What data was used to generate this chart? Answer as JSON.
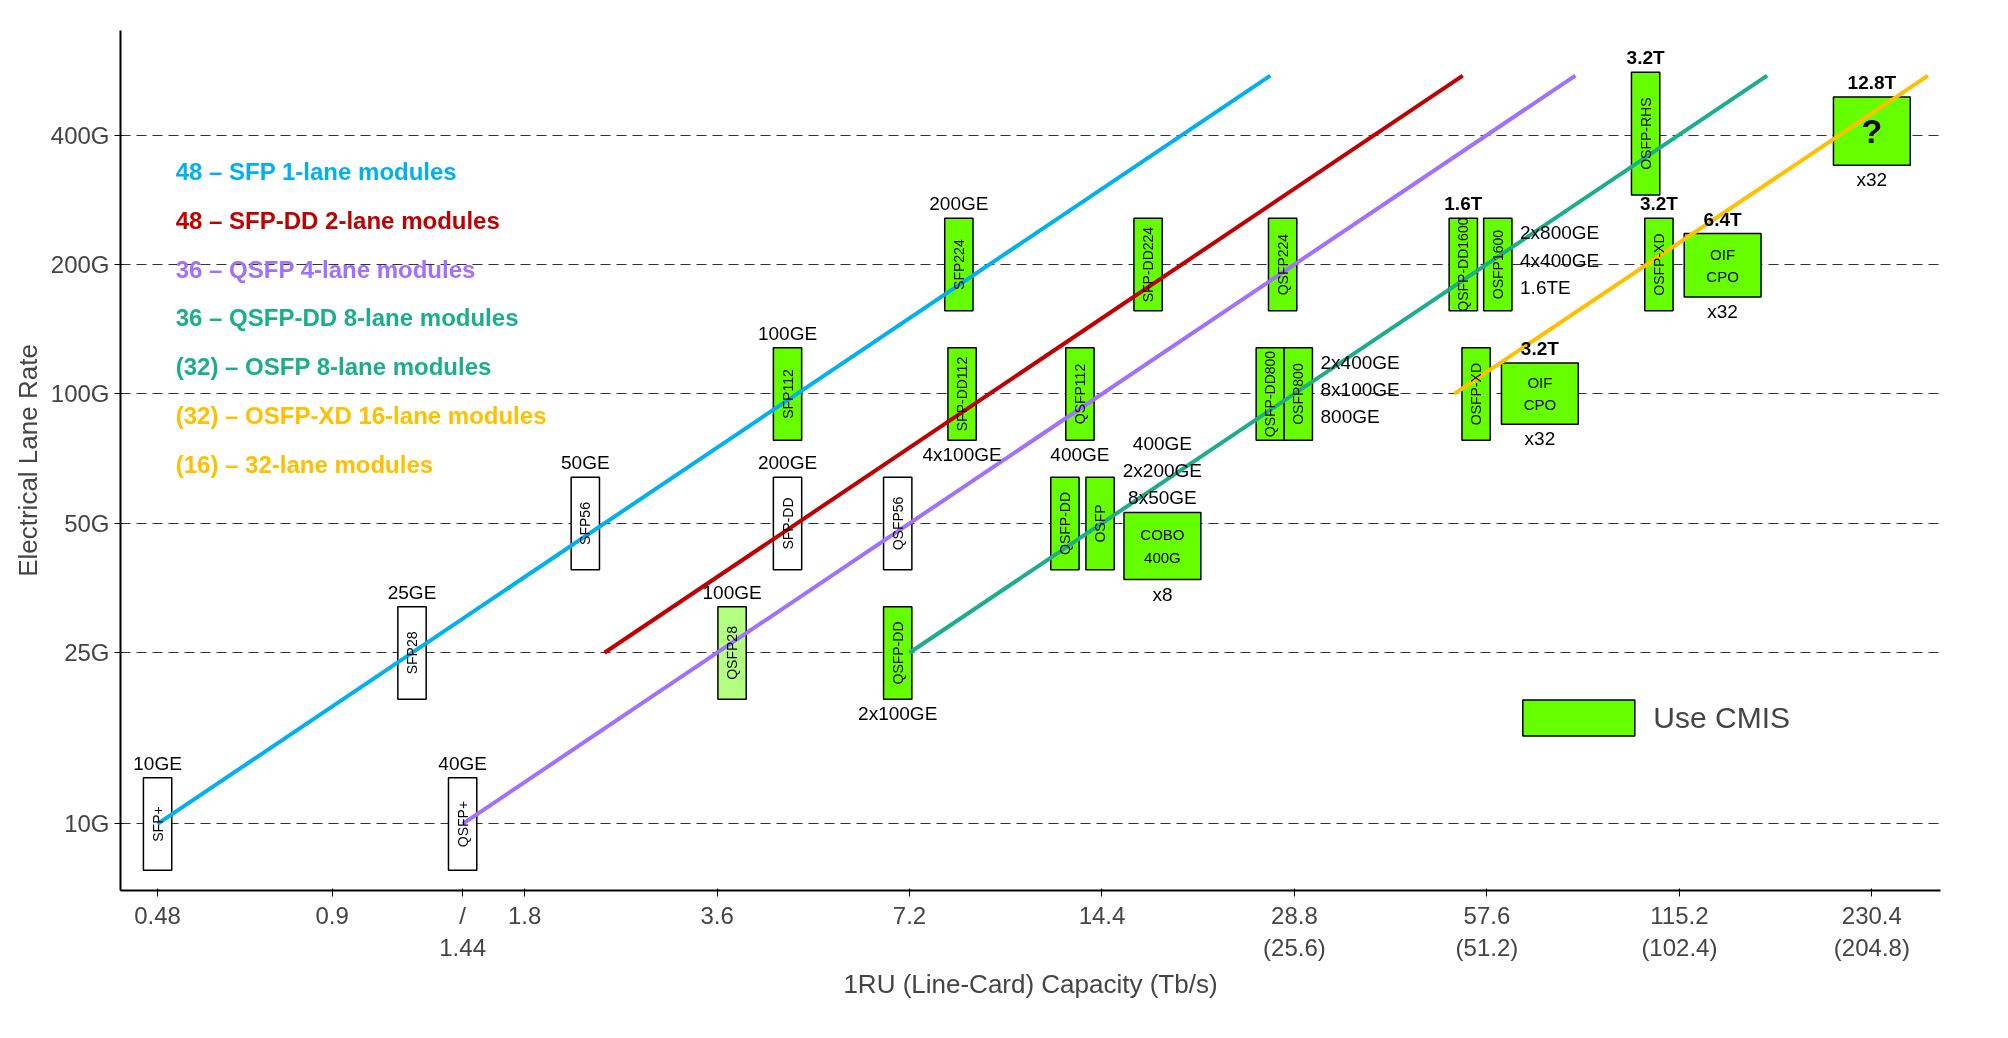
{
  "chart_data": {
    "type": "line",
    "xlabel": "1RU (Line-Card) Capacity (Tb/s)",
    "ylabel": "Electrical Lane Rate",
    "log": "xy",
    "xlim": [
      0.42,
      295
    ],
    "ylim": [
      7,
      700
    ],
    "xticks": [
      0.48,
      0.9,
      {
        "value": 1.44,
        "label": "/\n1.44"
      },
      1.8,
      3.6,
      7.2,
      14.4,
      {
        "value": 28.8,
        "label": "28.8\n(25.6)"
      },
      {
        "value": 57.6,
        "label": "57.6\n(51.2)"
      },
      {
        "value": 115.2,
        "label": "115.2\n(102.4)"
      },
      {
        "value": 230.4,
        "label": "230.4\n(204.8)"
      }
    ],
    "yticks": [
      {
        "value": 10,
        "label": "10G"
      },
      {
        "value": 25,
        "label": "25G"
      },
      {
        "value": 50,
        "label": "50G"
      },
      {
        "value": 100,
        "label": "100G"
      },
      {
        "value": 200,
        "label": "200G"
      },
      {
        "value": 400,
        "label": "400G"
      }
    ],
    "grid": "y",
    "legend": "bottom right",
    "series": [
      {
        "name": "48 – SFP 1-lane modules",
        "color": "#00b0f0",
        "x": [
          0.48,
          26.4
        ],
        "values": [
          10,
          550
        ]
      },
      {
        "name": "48 – SFP-DD 2-lane modules",
        "color": "#c00000",
        "x": [
          2.4,
          52.8
        ],
        "values": [
          25,
          550
        ]
      },
      {
        "name": "36 – QSFP 4-lane modules",
        "color": "#a070ff",
        "x": [
          1.44,
          79.2
        ],
        "values": [
          10,
          550
        ]
      },
      {
        "name": "36 – QSFP-DD 8-lane modules",
        "color": "#1aaf8a",
        "x": [
          7.2,
          158
        ],
        "values": [
          25,
          550
        ]
      },
      {
        "name": "(32) – OSFP 8-lane modules",
        "color": "#1aaf8a"
      },
      {
        "name": "(32) – OSFP-XD 16-lane modules",
        "color": "#ffc000",
        "x": [
          51.2,
          282
        ],
        "values": [
          100,
          550
        ]
      },
      {
        "name": "(16) – 32-lane modules",
        "color": "#ffc000"
      },
      {
        "name": "Use CMIS",
        "type": "bar",
        "color": "#66ff00",
        "x": [
          4.64,
          6.9,
          8.6,
          8.7,
          12.6,
          13.3,
          14.3,
          17,
          17.9,
          26.4,
          27.6,
          29.2,
          52.9,
          55.4,
          59.9,
          69.7,
          102,
          107,
          134.6,
          230.4
        ],
        "base": [
          78,
          19.5,
          156,
          78,
          39,
          78,
          39,
          156,
          37,
          78,
          156,
          78,
          156,
          78,
          156,
          85,
          290,
          156,
          168,
          340
        ],
        "values": [
          50,
          12.5,
          100,
          50,
          25,
          50,
          25,
          100,
          16,
          50,
          100,
          50,
          100,
          50,
          100,
          33,
          270,
          100,
          68,
          150
        ],
        "value_labels": [
          "SFP112",
          "QSFP-DD",
          "SFP224",
          "SFP-DD112",
          "QSFP-DD",
          "QSFP112",
          "OSFP",
          "SFP-DD224",
          "COBO\n400G",
          "QSFP-DD800",
          "QSFP224",
          "OSFP800",
          "QSFP-DD1600",
          "OSFP-XD",
          "OSFP1600",
          "OIF\nCPO",
          "OSFP-RHS",
          "OSFP-XD",
          "OIF\nCPO",
          "?"
        ]
      },
      {
        "type": "bar",
        "color": "#ffffff",
        "x": [
          0.48,
          1.2,
          1.44,
          2.24,
          4.64,
          6.9
        ],
        "base": [
          7.8,
          19.5,
          7.8,
          39,
          39,
          39
        ],
        "values": [
          5,
          12.5,
          5,
          25,
          25,
          25
        ],
        "value_labels": [
          "SFP+",
          "SFP28",
          "QSFP+",
          "SFP56",
          "SFP-DD",
          "QSFP56"
        ]
      },
      {
        "type": "bar",
        "color": "#b3ff80",
        "x": [
          3.8
        ],
        "base": [
          19.5
        ],
        "values": [
          12.5
        ],
        "value_labels": [
          "QSFP28"
        ]
      }
    ],
    "annotations": [
      {
        "text": "10GE",
        "x": 0.48,
        "y": 12.8
      },
      {
        "text": "25GE",
        "x": 1.2,
        "y": 32
      },
      {
        "text": "40GE",
        "x": 1.44,
        "y": 12.8
      },
      {
        "text": "50GE",
        "x": 2.24,
        "y": 64
      },
      {
        "text": "100GE",
        "x": 3.8,
        "y": 32
      },
      {
        "text": "100GE",
        "x": 4.64,
        "y": 128
      },
      {
        "text": "200GE",
        "x": 4.64,
        "y": 64
      },
      {
        "text": "200GE",
        "x": 8.6,
        "y": 256
      },
      {
        "text": "4x100GE",
        "x": 8.7,
        "y": 78
      },
      {
        "text": "400GE",
        "x": 13.3,
        "y": 78
      },
      {
        "text": "400GE\n2x200GE\n8x50GE",
        "x": 17.9,
        "y": 53
      },
      {
        "text": "x8",
        "x": 17.9,
        "y": 37
      },
      {
        "text": "2x100GE",
        "x": 6.9,
        "y": 19.5
      },
      {
        "text": "2x400GE\n8x100GE\n800GE",
        "x": 29.2,
        "y": 128
      },
      {
        "text": "2x800GE\n4x400GE\n1.6TE",
        "x": 59.9,
        "y": 256
      },
      {
        "text": "1.6T",
        "x": 52.9,
        "y": 256
      },
      {
        "text": "3.2T",
        "x": 69.7,
        "y": 118
      },
      {
        "text": "x32",
        "x": 69.7,
        "y": 85
      },
      {
        "text": "3.2T",
        "x": 107,
        "y": 256
      },
      {
        "text": "x32",
        "x": 134.6,
        "y": 168
      },
      {
        "text": "6.4T",
        "x": 134.6,
        "y": 236
      },
      {
        "text": "3.2T",
        "x": 102,
        "y": 560
      },
      {
        "text": "12.8T",
        "x": 230.4,
        "y": 490
      },
      {
        "text": "x32",
        "x": 230.4,
        "y": 340
      }
    ]
  }
}
